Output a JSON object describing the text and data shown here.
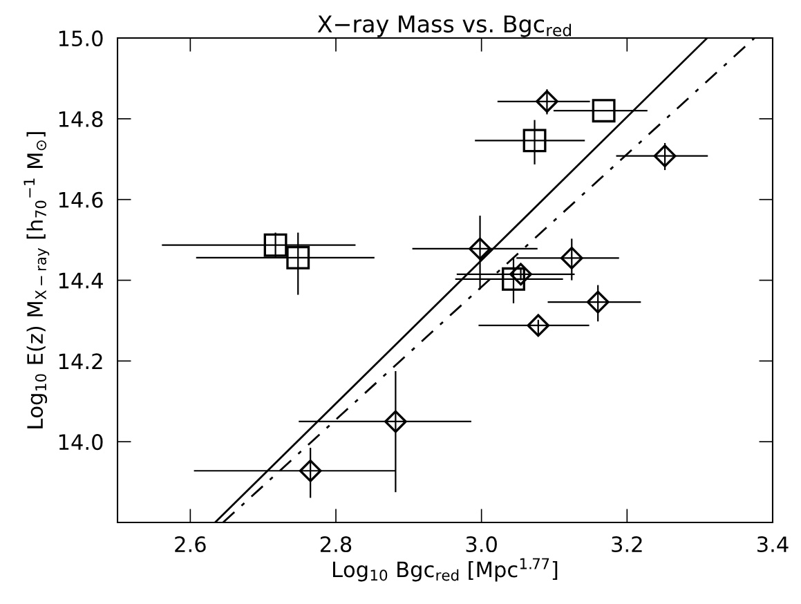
{
  "chart_data": {
    "type": "scatter",
    "title": "X−ray Mass vs. Bgc$_{red}$",
    "xlabel": "Log$_{10}$ Bgc$_{red}$ [Mpc$^{1.77}$]",
    "ylabel": "Log$_{10}$ E(z) M$_{X−ray}$ [h$_{70}$$^{−1}$ M$_{⊙}$]",
    "xlim": [
      2.5,
      3.4
    ],
    "ylim": [
      13.8,
      15.0
    ],
    "xticks": [
      2.6,
      2.8,
      {
        "value": 3.0,
        "label": "3.0"
      },
      3.2,
      3.4
    ],
    "yticks": [
      {
        "value": 14.0,
        "label": "14.0"
      },
      14.2,
      14.4,
      14.6,
      14.8,
      {
        "value": 15.0,
        "label": "15.0"
      }
    ],
    "grid": false,
    "legend": false,
    "series": [
      {
        "marker": "diamond",
        "color": "#000000",
        "x": [
          3.09,
          3.252,
          2.998,
          3.054,
          3.124,
          3.16,
          3.078,
          2.882,
          2.765
        ],
        "values": [
          14.843,
          14.708,
          14.478,
          14.415,
          14.455,
          14.346,
          14.288,
          14.05,
          13.928
        ],
        "xerrors": [
          [
            3.022,
            3.149
          ],
          [
            3.185,
            3.311
          ],
          [
            2.905,
            3.077
          ],
          [
            2.966,
            3.128
          ],
          [
            3.048,
            3.189
          ],
          [
            3.091,
            3.219
          ],
          [
            2.996,
            3.148
          ],
          [
            2.749,
            2.986
          ],
          [
            2.605,
            2.882
          ]
        ],
        "errors": [
          [
            14.811,
            14.873
          ],
          [
            14.673,
            14.74
          ],
          [
            14.377,
            14.56
          ],
          [
            14.4,
            14.43
          ],
          [
            14.4,
            14.503
          ],
          [
            14.298,
            14.388
          ],
          [
            14.266,
            14.302
          ],
          [
            13.875,
            14.175
          ],
          [
            13.861,
            13.985
          ]
        ]
      },
      {
        "marker": "square",
        "color": "#000000",
        "x": [
          2.717,
          2.748,
          3.168,
          3.073,
          3.044
        ],
        "values": [
          14.487,
          14.456,
          14.82,
          14.746,
          14.403
        ],
        "xerrors": [
          [
            2.561,
            2.827
          ],
          [
            2.608,
            2.853
          ],
          [
            3.099,
            3.228
          ],
          [
            2.991,
            3.142
          ],
          [
            2.964,
            3.112
          ]
        ],
        "errors": [
          [
            14.454,
            14.518
          ],
          [
            14.364,
            14.518
          ],
          null,
          [
            14.687,
            14.797
          ],
          [
            14.343,
            14.455
          ]
        ]
      },
      {
        "type": "line",
        "line_style": "solid",
        "color": "#000000",
        "x": [
          2.634,
          3.31
        ],
        "values": [
          13.8,
          15.0
        ]
      },
      {
        "type": "line",
        "line_style": "dashdot",
        "color": "#000000",
        "x": [
          2.645,
          3.375
        ],
        "values": [
          13.8,
          15.0
        ]
      }
    ]
  }
}
